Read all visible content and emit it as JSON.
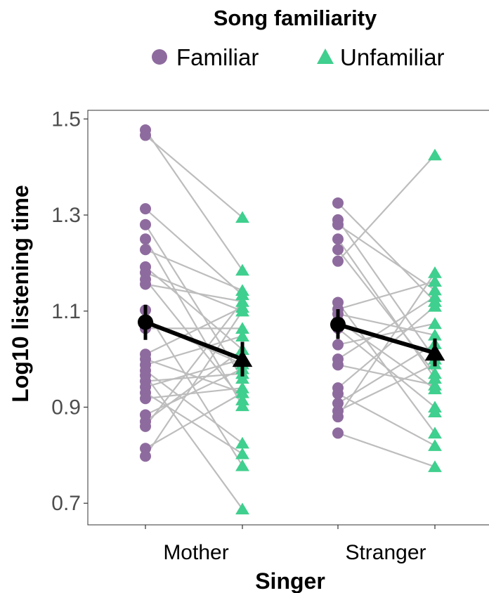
{
  "chart_data": {
    "type": "scatter",
    "xlabel": "Singer",
    "ylabel": "Log10 listening time",
    "categories": [
      "Mother",
      "Stranger"
    ],
    "yticks": [
      "0.7",
      "0.9",
      "1.1",
      "1.3",
      "1.5"
    ],
    "ylim": [
      0.655,
      1.518
    ],
    "grid": false,
    "legend": {
      "title": "Song familiarity",
      "position": "top",
      "entries": [
        {
          "label": "Familiar",
          "shape": "circle",
          "color": "#8e6b9e"
        },
        {
          "label": "Unfamiliar",
          "shape": "triangle",
          "color": "#3fcf8e"
        }
      ]
    },
    "series": [
      {
        "name": "Familiar",
        "color": "#8e6b9e",
        "shape": "circle",
        "points": [
          {
            "x": "Mother",
            "y": [
              1.477,
              1.466,
              1.313,
              1.28,
              1.25,
              1.228,
              1.192,
              1.18,
              1.166,
              1.156,
              1.102,
              1.078,
              1.064,
              1.01,
              1.0,
              0.988,
              0.976,
              0.966,
              0.954,
              0.942,
              0.93,
              0.918,
              0.884,
              0.87,
              0.86,
              0.814,
              0.798
            ]
          },
          {
            "x": "Stranger",
            "y": [
              1.325,
              1.29,
              1.28,
              1.25,
              1.228,
              1.204,
              1.118,
              1.104,
              1.094,
              1.08,
              1.064,
              1.03,
              1.0,
              0.988,
              0.94,
              0.928,
              0.908,
              0.892,
              0.88,
              0.846
            ]
          }
        ]
      },
      {
        "name": "Unfamiliar",
        "color": "#3fcf8e",
        "shape": "triangle",
        "points": [
          {
            "x": "Mother",
            "y": [
              1.295,
              1.185,
              1.143,
              1.134,
              1.12,
              1.108,
              1.1,
              1.064,
              1.048,
              1.02,
              1.0,
              0.99,
              0.98,
              0.97,
              0.96,
              0.94,
              0.93,
              0.915,
              0.903,
              0.825,
              0.803,
              0.778,
              0.688
            ]
          },
          {
            "x": "Stranger",
            "y": [
              1.425,
              1.18,
              1.162,
              1.144,
              1.13,
              1.12,
              1.11,
              1.074,
              1.05,
              1.032,
              1.0,
              0.99,
              0.97,
              0.96,
              0.946,
              0.938,
              0.9,
              0.89,
              0.846,
              0.82,
              0.776
            ]
          }
        ]
      }
    ],
    "pairs": [
      {
        "group": "Mother",
        "from": [
          1.477,
          1.466,
          1.313,
          1.28,
          1.25,
          1.228,
          1.192,
          1.18,
          1.166,
          1.156,
          1.102,
          1.078,
          1.064,
          1.01,
          1.0,
          0.988,
          0.976,
          0.966,
          0.954,
          0.942,
          0.93,
          0.918,
          0.884,
          0.87,
          0.86,
          0.814,
          0.798
        ],
        "to": [
          1.185,
          1.295,
          1.134,
          0.96,
          0.903,
          1.143,
          1.02,
          1.1,
          0.915,
          1.12,
          0.778,
          0.99,
          1.064,
          1.108,
          0.93,
          1.048,
          0.825,
          0.688,
          0.97,
          1.0,
          0.803,
          0.94,
          0.98,
          1.02,
          1.12,
          0.93,
          1.1
        ]
      },
      {
        "group": "Stranger",
        "from": [
          1.325,
          1.29,
          1.28,
          1.25,
          1.228,
          1.204,
          1.118,
          1.104,
          1.094,
          1.08,
          1.064,
          1.03,
          1.0,
          0.988,
          0.94,
          0.928,
          0.908,
          0.892,
          0.88,
          0.846
        ],
        "to": [
          1.12,
          1.0,
          1.144,
          0.96,
          0.97,
          1.425,
          0.846,
          1.162,
          1.05,
          0.938,
          0.9,
          1.074,
          1.13,
          0.946,
          1.11,
          0.82,
          1.032,
          0.99,
          1.18,
          0.776
        ]
      }
    ],
    "summary": [
      {
        "name": "Familiar",
        "shape": "circle",
        "color": "#000000",
        "values": [
          {
            "x": "Mother",
            "mean": 1.077,
            "lo": 1.04,
            "hi": 1.113
          },
          {
            "x": "Stranger",
            "mean": 1.072,
            "lo": 1.042,
            "hi": 1.104
          }
        ]
      },
      {
        "name": "Unfamiliar",
        "shape": "triangle",
        "color": "#000000",
        "values": [
          {
            "x": "Mother",
            "mean": 1.0,
            "lo": 0.964,
            "hi": 1.036
          },
          {
            "x": "Stranger",
            "mean": 1.013,
            "lo": 0.985,
            "hi": 1.043
          }
        ]
      }
    ]
  }
}
